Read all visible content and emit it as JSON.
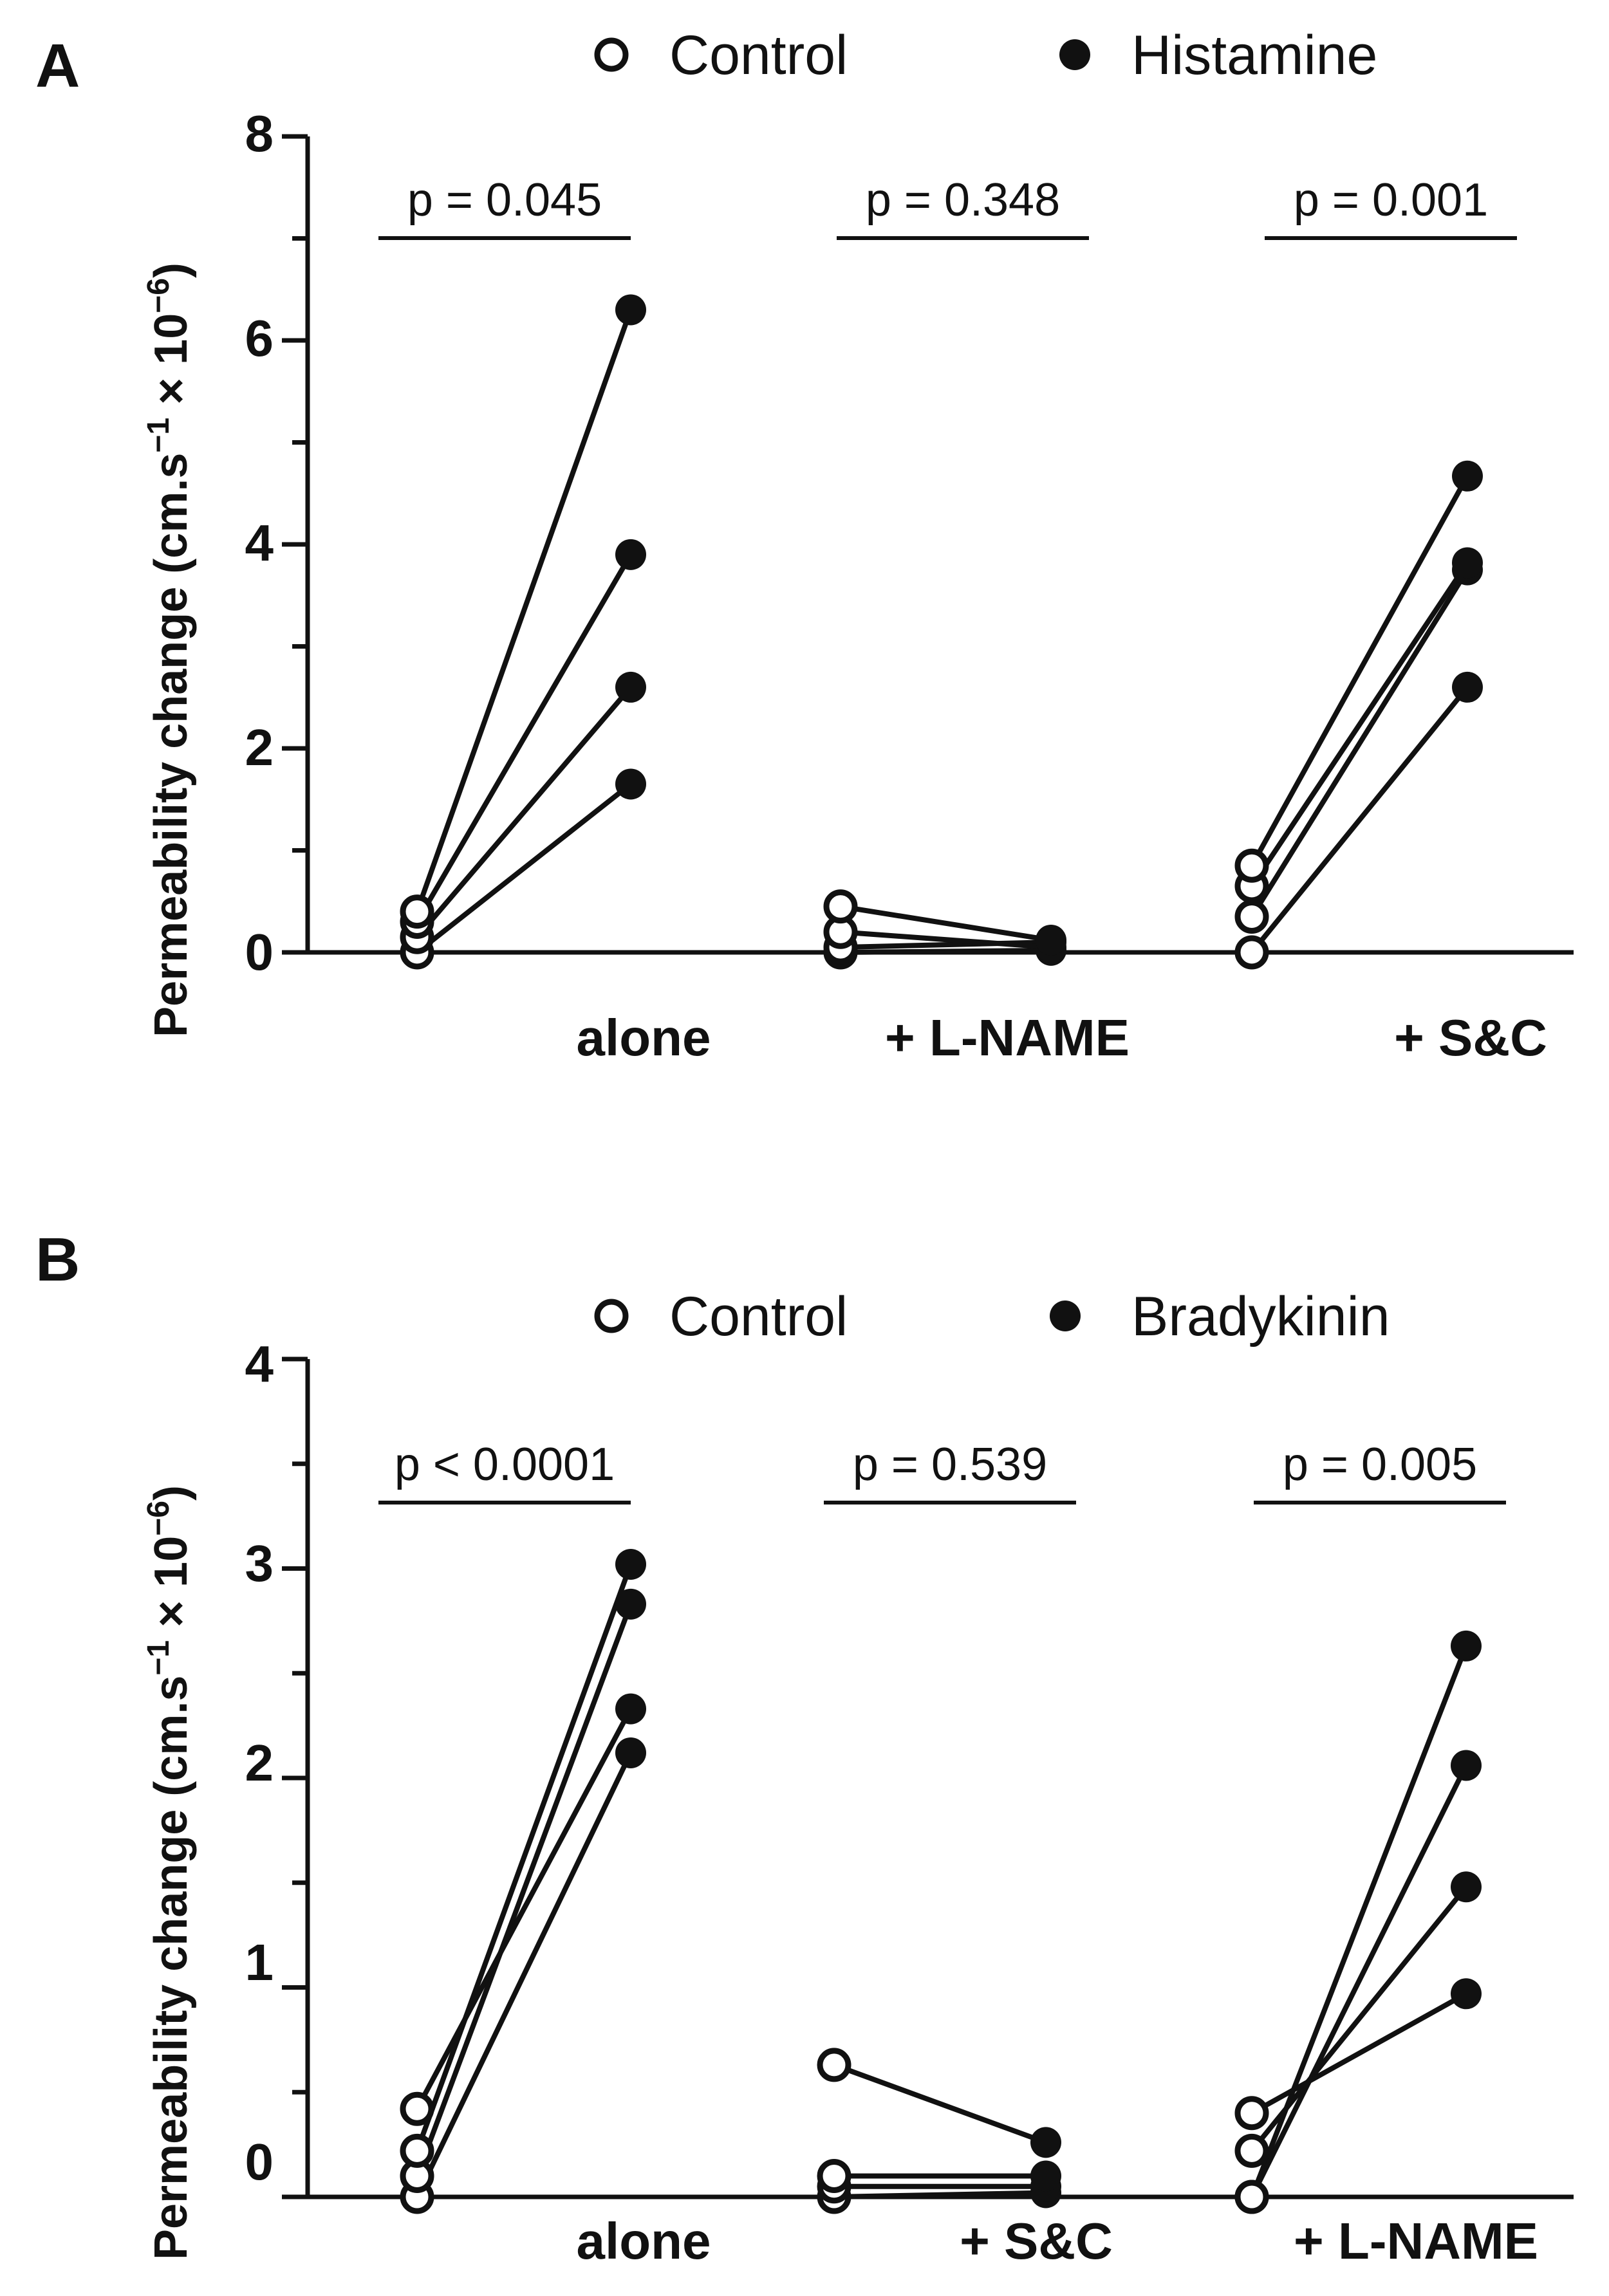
{
  "chart_data": [
    {
      "panel": "A",
      "type": "scatter",
      "ylabel": "Permeability change (cm.s",
      "ylabel_sup1": "−1",
      "ylabel_mid": " × 10",
      "ylabel_sup2": "−6",
      "ylabel_end": ")",
      "ylim": [
        0,
        8
      ],
      "yticks": [
        0,
        2,
        4,
        6,
        8
      ],
      "legend": [
        "Control",
        "Histamine"
      ],
      "groups": [
        {
          "label": "alone",
          "p": "p = 0.045",
          "pairs": [
            [
              0.0,
              1.65
            ],
            [
              0.15,
              2.6
            ],
            [
              0.3,
              3.9
            ],
            [
              0.4,
              6.3
            ]
          ]
        },
        {
          "label": "+ L-NAME",
          "p": "p = 0.348",
          "pairs": [
            [
              0.0,
              0.02
            ],
            [
              0.05,
              0.1
            ],
            [
              0.2,
              0.05
            ],
            [
              0.45,
              0.12
            ]
          ]
        },
        {
          "label": "+ S&C",
          "p": "p = 0.001",
          "pairs": [
            [
              0.0,
              2.6
            ],
            [
              0.35,
              3.75
            ],
            [
              0.65,
              3.82
            ],
            [
              0.85,
              4.67
            ]
          ]
        }
      ]
    },
    {
      "panel": "B",
      "type": "scatter",
      "ylabel": "Permeability change (cm.s",
      "ylabel_sup1": "−1",
      "ylabel_mid": " × 10",
      "ylabel_sup2": "−6",
      "ylabel_end": ")",
      "ylim": [
        0,
        4
      ],
      "yticks": [
        0,
        1,
        2,
        3,
        4
      ],
      "legend": [
        "Control",
        "Bradykinin"
      ],
      "groups": [
        {
          "label": "alone",
          "p": "p < 0.0001",
          "pairs": [
            [
              0.0,
              2.12
            ],
            [
              0.1,
              2.83
            ],
            [
              0.22,
              3.02
            ],
            [
              0.42,
              2.33
            ]
          ]
        },
        {
          "label": "+ S&C",
          "p": "p = 0.539",
          "pairs": [
            [
              0.0,
              0.02
            ],
            [
              0.05,
              0.05
            ],
            [
              0.1,
              0.1
            ],
            [
              0.63,
              0.26
            ]
          ]
        },
        {
          "label": "+ L-NAME",
          "p": "p = 0.005",
          "pairs": [
            [
              0.0,
              2.63
            ],
            [
              0.0,
              2.06
            ],
            [
              0.22,
              1.48
            ],
            [
              0.4,
              0.97
            ]
          ]
        }
      ]
    }
  ]
}
